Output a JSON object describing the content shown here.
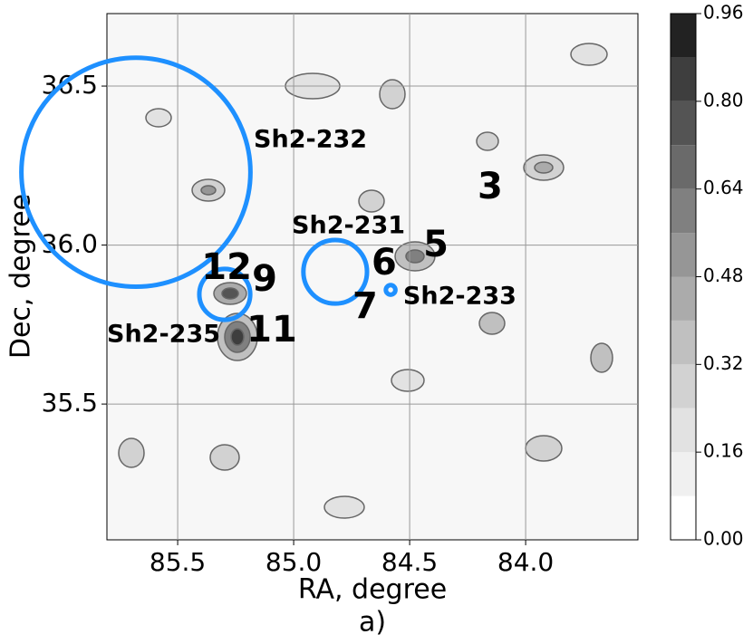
{
  "chart_data": {
    "type": "contour",
    "xlabel": "RA, degree",
    "ylabel": "Dec, degree",
    "caption": "a)",
    "xlim": [
      85.805,
      83.516
    ],
    "ylim": [
      35.073,
      36.728
    ],
    "xticks": [
      85.5,
      {
        "value": 85,
        "label": "85.0"
      },
      84.5,
      {
        "value": 84,
        "label": "84.0"
      }
    ],
    "yticks": [
      35.5,
      {
        "value": 36,
        "label": "36.0"
      },
      36.5
    ],
    "grid": true,
    "colorbar": {
      "lim": [
        0,
        0.96
      ],
      "levels": [
        0,
        0.08,
        0.16,
        0.24,
        0.32,
        0.4,
        0.48,
        0.56,
        0.64,
        0.72,
        0.8,
        0.88,
        0.96
      ],
      "colors": [
        "#ffffff",
        "#f0f0f0",
        "#e2e2e2",
        "#d2d2d2",
        "#c0c0c0",
        "#ababab",
        "#969696",
        "#808080",
        "#6a6a6a",
        "#545454",
        "#3e3e3e",
        "#222222"
      ],
      "ticks": [
        {
          "value": 0,
          "label": "0.00"
        },
        0.16,
        0.32,
        0.48,
        0.64,
        {
          "value": 0.8,
          "label": "0.80"
        },
        0.96
      ]
    },
    "annotations": [
      {
        "text": "3",
        "x": 84.153,
        "y": 36.178,
        "color": "#ff0000"
      },
      {
        "text": "5",
        "x": 84.387,
        "y": 35.996,
        "color": "#ff0000"
      },
      {
        "text": "6",
        "x": 84.61,
        "y": 35.939,
        "color": "#ff0000"
      },
      {
        "text": "7",
        "x": 84.692,
        "y": 35.802,
        "color": "#ff0000"
      },
      {
        "text": "9",
        "x": 85.125,
        "y": 35.887,
        "color": "#ff0000"
      },
      {
        "text": "11",
        "x": 85.094,
        "y": 35.728,
        "color": "#ff0000"
      },
      {
        "text": "12",
        "x": 85.289,
        "y": 35.925,
        "color": "#ff0000"
      }
    ],
    "regions": [
      {
        "name": "Sh2-232",
        "x": 85.68,
        "y": 36.229,
        "radius": 0.36,
        "label_x": 85.172,
        "label_y": 36.329,
        "color": "#1e90ff"
      },
      {
        "name": "Sh2-231",
        "x": 84.821,
        "y": 35.916,
        "radius": 0.1,
        "label_x": 85.008,
        "label_y": 36.058,
        "color": "#1e90ff"
      },
      {
        "name": "Sh2-233",
        "x": 84.582,
        "y": 35.859,
        "radius": 0.015,
        "label_x": 84.528,
        "label_y": 35.836,
        "color": "#1e90ff"
      },
      {
        "name": "Sh2-235",
        "x": 85.297,
        "y": 35.845,
        "radius": 0.08,
        "label_x": 85.805,
        "label_y": 35.717,
        "color": "#1e90ff"
      }
    ]
  }
}
